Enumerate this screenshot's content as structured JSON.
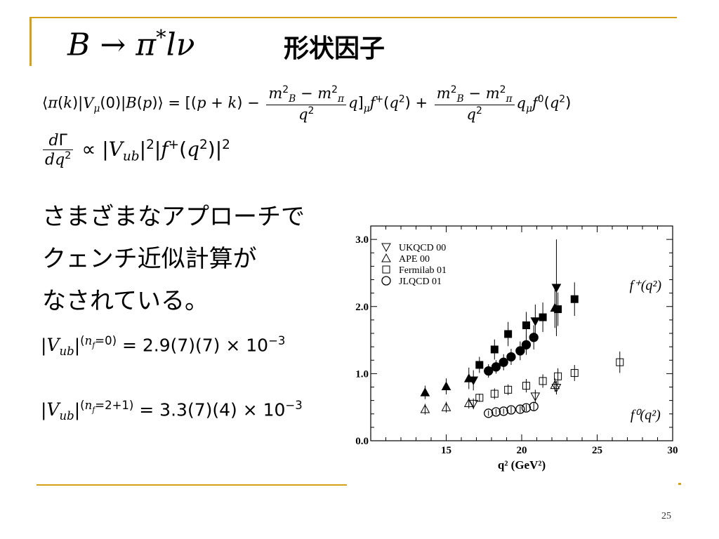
{
  "slide": {
    "title_math": "B → π*lν",
    "title_text": "形状因子",
    "page_number": "25",
    "body_lines": [
      "さまざまなアプローチで",
      "クェンチ近似計算が",
      "なされている。"
    ],
    "vub_quenched": "|V_ub|^(n_f=0) = 2.9(7)(7) × 10^−3",
    "vub_dynamical": "|V_ub|^(n_f=2+1) = 3.3(7)(4) × 10^−3",
    "matrix_element": "⟨π(k)|V_μ(0)|B(p)⟩ = [(p + k) − (m_B^2 − m_π^2)/q^2 q]_μ f^+(q^2) + (m_B^2 − m_π^2)/q^2 q_μ f^0(q^2)",
    "decay_rate": "dΓ/dq^2 ∝ |V_ub|^2 |f^+(q^2)|^2",
    "accent_color": "#d4a017"
  },
  "chart_data": {
    "type": "scatter",
    "xlabel": "q² (GeV²)",
    "ylabel": "",
    "xlim": [
      10,
      30
    ],
    "ylim": [
      0,
      3.2
    ],
    "x_ticks": [
      15,
      20,
      25,
      30
    ],
    "y_ticks": [
      0.0,
      1.0,
      2.0,
      3.0
    ],
    "y_tick_labels": [
      "0.0",
      "1.0",
      "2.0",
      "3.0"
    ],
    "legend_position": "top-left",
    "annotations": [
      {
        "text": "f⁺(q²)",
        "x": 28.2,
        "y": 2.25
      },
      {
        "text": "f⁰(q²)",
        "x": 28.2,
        "y": 0.32
      }
    ],
    "series": [
      {
        "name": "UKQCD 00",
        "marker": "triangle-down",
        "form_factor": "f+",
        "filled": true,
        "points": [
          [
            16.8,
            0.9
          ],
          [
            20.9,
            1.78
          ],
          [
            22.3,
            2.28
          ]
        ],
        "err": [
          0.15,
          0.25,
          0.72
        ]
      },
      {
        "name": "UKQCD 00",
        "marker": "triangle-down",
        "form_factor": "f0",
        "filled": false,
        "points": [
          [
            16.8,
            0.55
          ],
          [
            20.9,
            0.66
          ],
          [
            22.3,
            0.79
          ]
        ],
        "err": [
          0.08,
          0.1,
          0.1
        ]
      },
      {
        "name": "APE 00",
        "marker": "triangle-up",
        "form_factor": "f+",
        "filled": true,
        "points": [
          [
            13.6,
            0.72
          ],
          [
            15.0,
            0.81
          ],
          [
            16.5,
            0.93
          ],
          [
            22.2,
            1.98
          ]
        ],
        "err": [
          0.1,
          0.12,
          0.16,
          0.3
        ]
      },
      {
        "name": "APE 00",
        "marker": "triangle-up",
        "form_factor": "f0",
        "filled": false,
        "points": [
          [
            13.6,
            0.47
          ],
          [
            15.0,
            0.5
          ],
          [
            16.5,
            0.56
          ],
          [
            22.2,
            0.83
          ]
        ],
        "err": [
          0.08,
          0.08,
          0.08,
          0.1
        ]
      },
      {
        "name": "Fermilab 01",
        "marker": "square",
        "form_factor": "f+",
        "filled": true,
        "points": [
          [
            17.2,
            1.13
          ],
          [
            18.2,
            1.36
          ],
          [
            19.1,
            1.59
          ],
          [
            20.3,
            1.72
          ],
          [
            21.4,
            1.84
          ],
          [
            22.4,
            1.96
          ],
          [
            23.5,
            2.11
          ]
        ],
        "err": [
          0.12,
          0.15,
          0.18,
          0.2,
          0.22,
          0.25,
          0.25
        ]
      },
      {
        "name": "Fermilab 01",
        "marker": "square",
        "form_factor": "f0",
        "filled": false,
        "points": [
          [
            17.2,
            0.64
          ],
          [
            18.2,
            0.7
          ],
          [
            19.1,
            0.76
          ],
          [
            20.3,
            0.82
          ],
          [
            21.4,
            0.89
          ],
          [
            22.4,
            0.96
          ],
          [
            23.5,
            1.01
          ],
          [
            26.5,
            1.17
          ]
        ],
        "err": [
          0.06,
          0.08,
          0.08,
          0.1,
          0.1,
          0.12,
          0.12,
          0.16
        ]
      },
      {
        "name": "JLQCD 01",
        "marker": "circle",
        "form_factor": "f+",
        "filled": true,
        "points": [
          [
            17.8,
            1.04
          ],
          [
            18.3,
            1.1
          ],
          [
            18.8,
            1.17
          ],
          [
            19.3,
            1.25
          ],
          [
            19.9,
            1.34
          ],
          [
            20.3,
            1.43
          ],
          [
            20.8,
            1.54
          ]
        ],
        "err": [
          0.1,
          0.1,
          0.12,
          0.12,
          0.14,
          0.15,
          0.18
        ]
      },
      {
        "name": "JLQCD 01",
        "marker": "circle",
        "form_factor": "f0",
        "filled": false,
        "points": [
          [
            17.8,
            0.41
          ],
          [
            18.3,
            0.43
          ],
          [
            18.8,
            0.44
          ],
          [
            19.3,
            0.46
          ],
          [
            19.9,
            0.47
          ],
          [
            20.3,
            0.49
          ],
          [
            20.8,
            0.51
          ]
        ],
        "err": [
          0.04,
          0.04,
          0.04,
          0.05,
          0.05,
          0.05,
          0.06
        ]
      }
    ],
    "legend": [
      {
        "label": "UKQCD 00",
        "marker": "triangle-down"
      },
      {
        "label": "APE 00",
        "marker": "triangle-up"
      },
      {
        "label": "Fermilab 01",
        "marker": "square"
      },
      {
        "label": "JLQCD 01",
        "marker": "circle"
      }
    ]
  }
}
